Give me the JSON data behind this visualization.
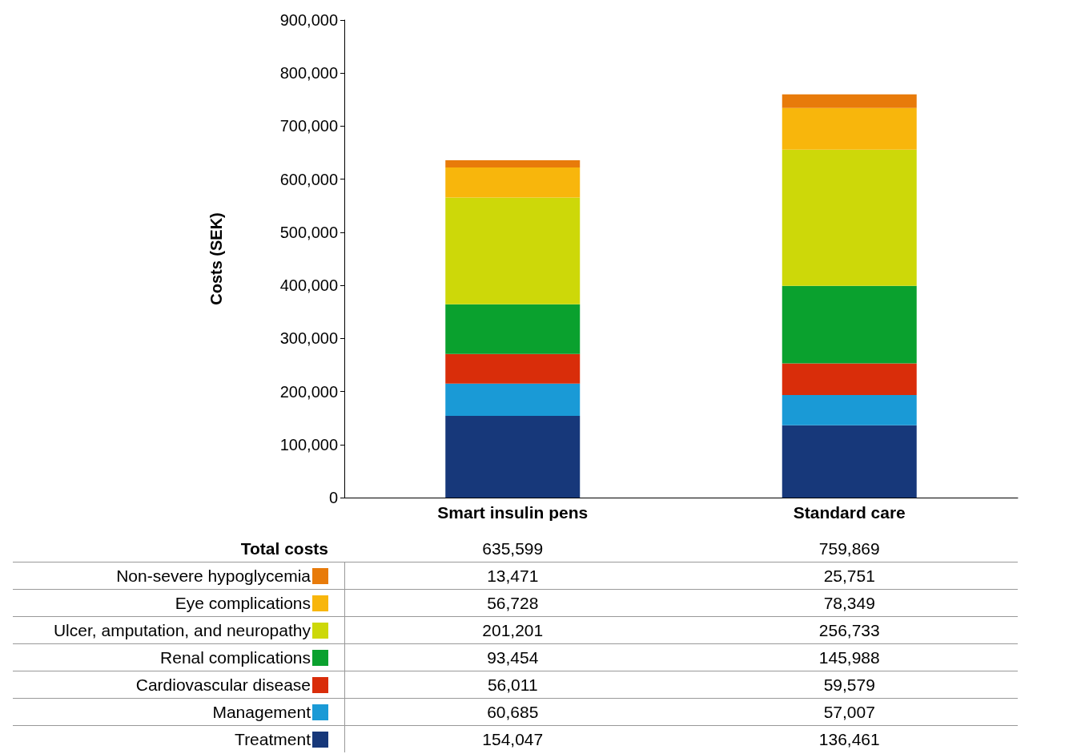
{
  "chart_data": {
    "type": "bar",
    "stacked": true,
    "ylabel": "Costs (SEK)",
    "categories": [
      "Smart insulin pens",
      "Standard care"
    ],
    "series": [
      {
        "name": "Treatment",
        "color": "#17387a",
        "values": [
          154047,
          136461
        ],
        "value_labels": [
          "154,047",
          "136,461"
        ]
      },
      {
        "name": "Management",
        "color": "#1a9ad6",
        "values": [
          60685,
          57007
        ],
        "value_labels": [
          "60,685",
          "57,007"
        ]
      },
      {
        "name": "Cardiovascular disease",
        "color": "#d92d0a",
        "values": [
          56011,
          59579
        ],
        "value_labels": [
          "56,011",
          "59,579"
        ]
      },
      {
        "name": "Renal complications",
        "color": "#0aa12e",
        "values": [
          93454,
          145988
        ],
        "value_labels": [
          "93,454",
          "145,988"
        ]
      },
      {
        "name": "Ulcer, amputation, and neuropathy",
        "color": "#cdd809",
        "values": [
          201201,
          256733
        ],
        "value_labels": [
          "201,201",
          "256,733"
        ]
      },
      {
        "name": "Eye complications",
        "color": "#f8b60c",
        "values": [
          56728,
          78349
        ],
        "value_labels": [
          "56,728",
          "78,349"
        ]
      },
      {
        "name": "Non-severe hypoglycemia",
        "color": "#e87b0a",
        "values": [
          13471,
          25751
        ],
        "value_labels": [
          "13,471",
          "25,751"
        ]
      }
    ],
    "ylim": [
      0,
      900000
    ],
    "yticks": [
      0,
      {
        "value": 100000,
        "label": "100,000"
      },
      {
        "value": 200000,
        "label": "200,000"
      },
      {
        "value": 300000,
        "label": "300,000"
      },
      {
        "value": 400000,
        "label": "400,000"
      },
      {
        "value": 500000,
        "label": "500,000"
      },
      {
        "value": 600000,
        "label": "600,000"
      },
      {
        "value": 700000,
        "label": "700,000"
      },
      {
        "value": 800000,
        "label": "800,000"
      },
      {
        "value": 900000,
        "label": "900,000"
      }
    ],
    "grid": false,
    "legend": "bottom",
    "annotations": [
      "Total costs"
    ],
    "totals": [
      "635,599",
      "759,869"
    ]
  }
}
